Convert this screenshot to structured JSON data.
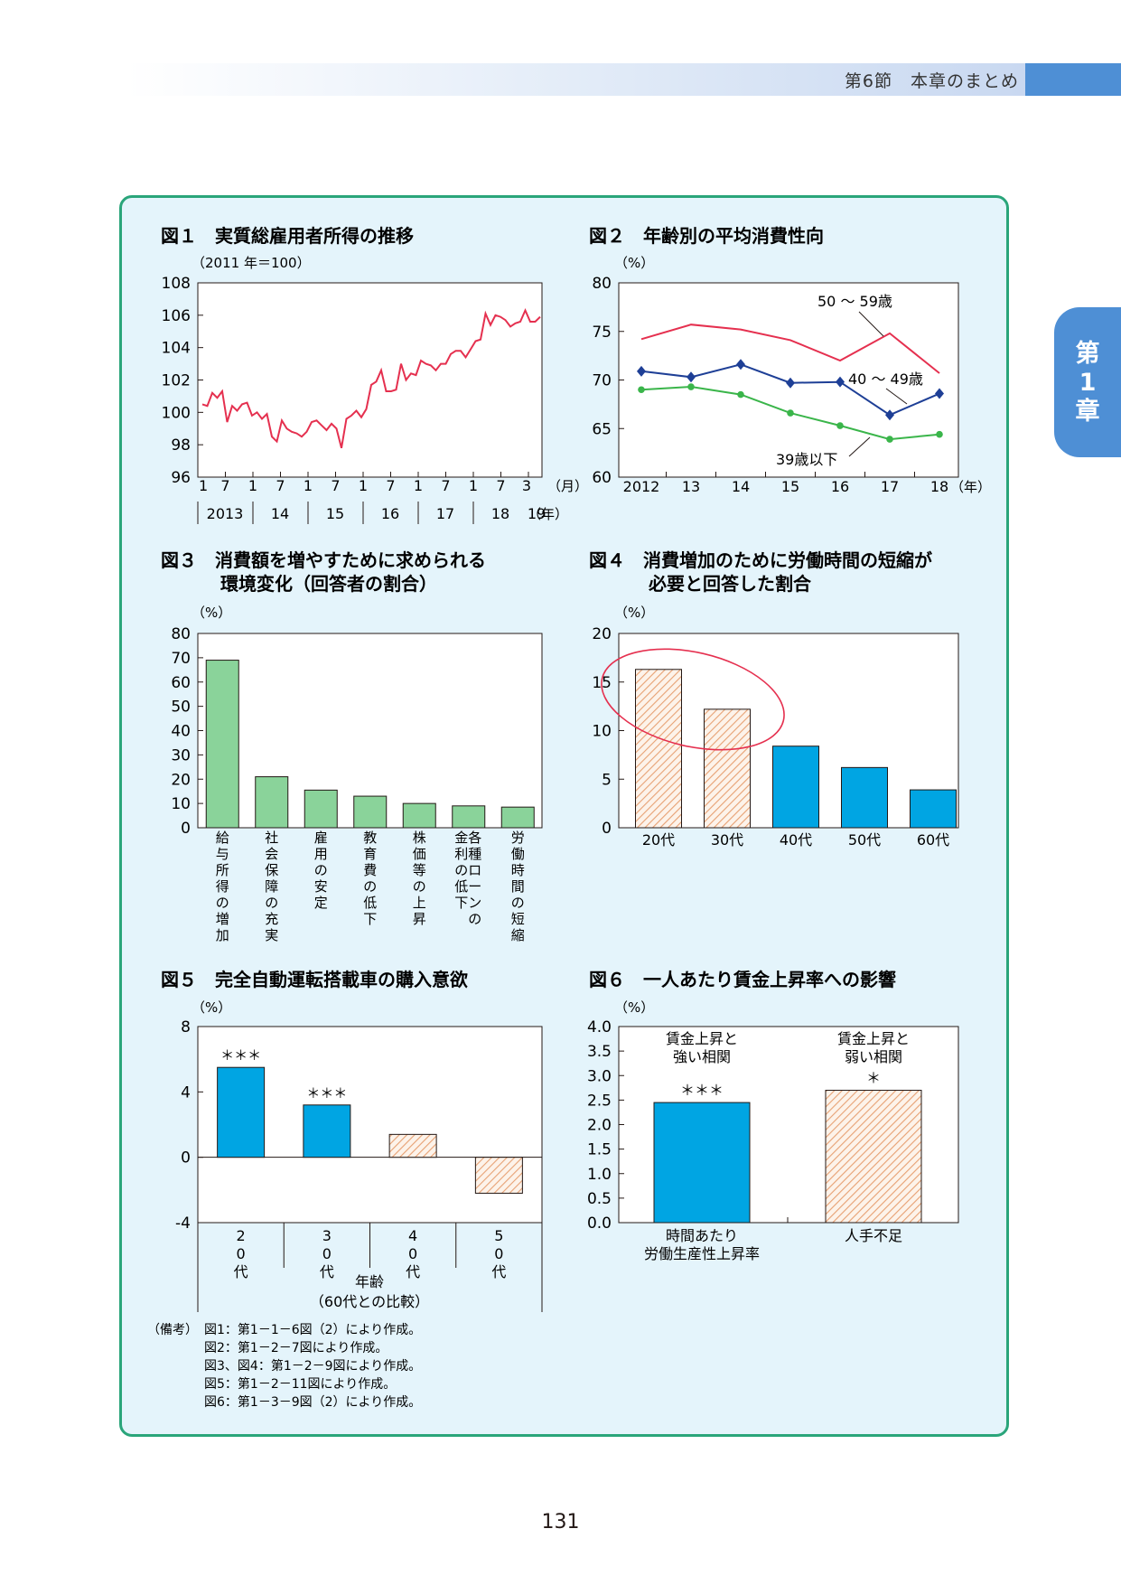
{
  "header": {
    "section_title": "第6節　本章のまとめ"
  },
  "side_tab": {
    "lines": [
      "第",
      "1",
      "章"
    ]
  },
  "page_number": "131",
  "colors": {
    "panel_bg": "#e4f4fb",
    "panel_border": "#2aa57a",
    "red": "#e5304f",
    "navy": "#1e3f96",
    "green": "#3ab54a",
    "cyan": "#00a5e3",
    "hatch": "#e7a173",
    "bar_green": "#8ad39a"
  },
  "chart_data": [
    {
      "id": "fig1",
      "type": "line",
      "title": "図１　実質総雇用者所得の推移",
      "subtitle": "（2011 年＝100）",
      "ylim": [
        96,
        108
      ],
      "yticks": [
        "108",
        "106",
        "104",
        "102",
        "100",
        "98",
        "96"
      ],
      "month_ticks": [
        "1",
        "7",
        "1",
        "7",
        "1",
        "7",
        "1",
        "7",
        "1",
        "7",
        "1",
        "7",
        "3"
      ],
      "x_unit_month": "（月）",
      "x_unit_year": "（年）",
      "years": [
        "2013",
        "14",
        "15",
        "16",
        "17",
        "18",
        "19"
      ],
      "series": [
        {
          "values": [
            100.5,
            100.4,
            101.2,
            100.9,
            101.3,
            99.4,
            100.4,
            100.1,
            100.5,
            100.6,
            99.8,
            100.0,
            99.6,
            99.9,
            98.5,
            98.2,
            99.5,
            99.0,
            98.8,
            98.7,
            98.5,
            98.8,
            99.4,
            99.5,
            99.2,
            98.9,
            99.3,
            99.0,
            97.8,
            99.6,
            99.8,
            100.1,
            99.7,
            100.2,
            101.7,
            101.9,
            102.6,
            101.3,
            101.3,
            101.4,
            103.0,
            102.0,
            102.4,
            102.3,
            103.2,
            103.0,
            102.9,
            102.6,
            103.0,
            103.0,
            103.6,
            103.8,
            103.8,
            103.4,
            103.9,
            104.4,
            104.5,
            106.1,
            105.4,
            106.0,
            105.9,
            105.7,
            105.3,
            105.5,
            105.6,
            106.3,
            105.6,
            105.6,
            105.9
          ]
        }
      ]
    },
    {
      "id": "fig2",
      "type": "line",
      "title": "図２　年齢別の平均消費性向",
      "unit": "（%）",
      "ylim": [
        60,
        80
      ],
      "yticks": [
        "80",
        "75",
        "70",
        "65",
        "60"
      ],
      "categories": [
        "2012",
        "13",
        "14",
        "15",
        "16",
        "17",
        "18"
      ],
      "x_unit": "（年）",
      "series": [
        {
          "name": "50 ～ 59歳",
          "values": [
            74.2,
            75.7,
            75.2,
            74.1,
            72.0,
            74.8,
            70.7
          ]
        },
        {
          "name": "40 ～ 49歳",
          "values": [
            70.9,
            70.3,
            71.6,
            69.7,
            69.8,
            66.4,
            68.6
          ]
        },
        {
          "name": "39歳以下",
          "values": [
            69.0,
            69.3,
            68.5,
            66.6,
            65.3,
            63.9,
            64.4
          ]
        }
      ]
    },
    {
      "id": "fig3",
      "type": "bar",
      "title_line1": "図３　消費額を増やすために求められる",
      "title_line2": "環境変化（回答者の割合）",
      "unit": "（%）",
      "ylim": [
        0,
        80
      ],
      "yticks": [
        "80",
        "70",
        "60",
        "50",
        "40",
        "30",
        "20",
        "10",
        "0"
      ],
      "categories": [
        [
          "給与所得の増加"
        ],
        [
          "社会保障の充実"
        ],
        [
          "雇用の安定"
        ],
        [
          "教育費の低下"
        ],
        [
          "株価等の上昇"
        ],
        [
          "各種ローンの",
          "金利の低下"
        ],
        [
          "労働時間の短縮"
        ]
      ],
      "values": [
        69,
        21,
        15.5,
        13,
        10,
        9,
        8.5
      ]
    },
    {
      "id": "fig4",
      "type": "bar",
      "title_line1": "図４　消費増加のために労働時間の短縮が",
      "title_line2": "必要と回答した割合",
      "unit": "（%）",
      "ylim": [
        0,
        20
      ],
      "yticks": [
        "20",
        "15",
        "10",
        "5",
        "0"
      ],
      "categories": [
        "20代",
        "30代",
        "40代",
        "50代",
        "60代"
      ],
      "values": [
        16.3,
        12.2,
        8.4,
        6.2,
        3.9
      ],
      "hatched": [
        true,
        true,
        false,
        false,
        false
      ]
    },
    {
      "id": "fig5",
      "type": "bar",
      "title": "図５　完全自動運転搭載車の購入意欲",
      "unit": "（%）",
      "ylim": [
        -4,
        8
      ],
      "yticks": [
        "8",
        "4",
        "0",
        "-4"
      ],
      "categories": [
        "20代",
        "30代",
        "40代",
        "50代"
      ],
      "values": [
        5.5,
        3.2,
        1.4,
        -2.2
      ],
      "hatched": [
        false,
        false,
        true,
        true
      ],
      "significance": [
        "＊＊＊",
        "＊＊＊",
        "",
        ""
      ],
      "xlabel_line1": "年齢",
      "xlabel_line2": "（60代との比較）"
    },
    {
      "id": "fig6",
      "type": "bar",
      "title": "図６　一人あたり賃金上昇率への影響",
      "unit": "（%）",
      "ylim": [
        0,
        4
      ],
      "yticks": [
        "4.0",
        "3.5",
        "3.0",
        "2.5",
        "2.0",
        "1.5",
        "1.0",
        "0.5",
        "0.0"
      ],
      "categories": [
        [
          "時間あたり",
          "労働生産性上昇率"
        ],
        [
          "人手不足"
        ]
      ],
      "values": [
        2.45,
        2.7
      ],
      "hatched": [
        false,
        true
      ],
      "labels": [
        [
          "賃金上昇と",
          "強い相関"
        ],
        [
          "賃金上昇と",
          "弱い相関"
        ]
      ],
      "significance": [
        "＊＊＊",
        "＊"
      ]
    }
  ],
  "notes": [
    {
      "prefix": "（備考）",
      "text": "図1：第1－1－6図（2）により作成。"
    },
    {
      "prefix": "",
      "text": "図2：第1－2－7図により作成。"
    },
    {
      "prefix": "",
      "text": "図3、図4：第1－2－9図により作成。"
    },
    {
      "prefix": "",
      "text": "図5：第1－2－11図により作成。"
    },
    {
      "prefix": "",
      "text": "図6：第1－3－9図（2）により作成。"
    }
  ]
}
